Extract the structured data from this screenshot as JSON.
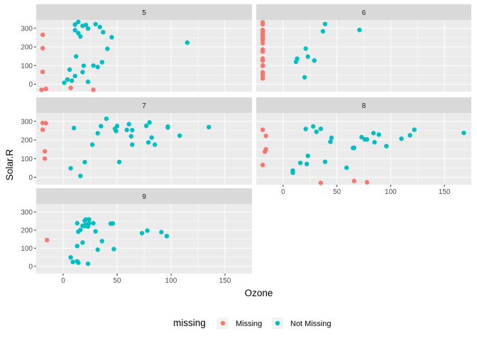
{
  "colors": {
    "missing": "#F8766D",
    "not_missing": "#00BFC4",
    "panel_bg": "#EBEBEB",
    "strip_bg": "#D9D9D9",
    "grid_major": "#FFFFFF"
  },
  "chart_data": {
    "type": "scatter",
    "facet_by": "Month",
    "xlabel": "Ozone",
    "ylabel": "Solar.R",
    "xlim": [
      -25,
      175
    ],
    "ylim": [
      -40,
      345
    ],
    "x_ticks": [
      0,
      50,
      100,
      150
    ],
    "y_ticks": [
      0,
      100,
      200,
      300
    ],
    "legend": {
      "title": "missing",
      "position": "bottom",
      "entries": [
        {
          "key": "missing",
          "label": "Missing"
        },
        {
          "key": "not_missing",
          "label": "Not Missing"
        }
      ]
    },
    "panels": [
      {
        "label": "5",
        "points": [
          {
            "x": -19,
            "y": 265,
            "g": "missing"
          },
          {
            "x": -19,
            "y": 193,
            "g": "missing"
          },
          {
            "x": -19,
            "y": 66,
            "g": "missing"
          },
          {
            "x": -20,
            "y": -30,
            "g": "missing"
          },
          {
            "x": -16,
            "y": -25,
            "g": "missing"
          },
          {
            "x": 7,
            "y": -20,
            "g": "missing"
          },
          {
            "x": 28,
            "y": -30,
            "g": "missing"
          },
          {
            "x": 41,
            "y": 190,
            "g": "not_missing"
          },
          {
            "x": 36,
            "y": 118,
            "g": "not_missing"
          },
          {
            "x": 12,
            "y": 149,
            "g": "not_missing"
          },
          {
            "x": 18,
            "y": 313,
            "g": "not_missing"
          },
          {
            "x": 28,
            "y": 100,
            "g": "not_missing"
          },
          {
            "x": 23,
            "y": 299,
            "g": "not_missing"
          },
          {
            "x": 19,
            "y": 99,
            "g": "not_missing"
          },
          {
            "x": 8,
            "y": 19,
            "g": "not_missing"
          },
          {
            "x": 16,
            "y": 256,
            "g": "not_missing"
          },
          {
            "x": 11,
            "y": 290,
            "g": "not_missing"
          },
          {
            "x": 14,
            "y": 274,
            "g": "not_missing"
          },
          {
            "x": 18,
            "y": 65,
            "g": "not_missing"
          },
          {
            "x": 14,
            "y": 334,
            "g": "not_missing"
          },
          {
            "x": 34,
            "y": 307,
            "g": "not_missing"
          },
          {
            "x": 6,
            "y": 78,
            "g": "not_missing"
          },
          {
            "x": 30,
            "y": 322,
            "g": "not_missing"
          },
          {
            "x": 11,
            "y": 44,
            "g": "not_missing"
          },
          {
            "x": 1,
            "y": 8,
            "g": "not_missing"
          },
          {
            "x": 11,
            "y": 320,
            "g": "not_missing"
          },
          {
            "x": 4,
            "y": 25,
            "g": "not_missing"
          },
          {
            "x": 32,
            "y": 92,
            "g": "not_missing"
          },
          {
            "x": 23,
            "y": 13,
            "g": "not_missing"
          },
          {
            "x": 45,
            "y": 252,
            "g": "not_missing"
          },
          {
            "x": 115,
            "y": 223,
            "g": "not_missing"
          },
          {
            "x": 37,
            "y": 279,
            "g": "not_missing"
          },
          {
            "x": 21,
            "y": 318,
            "g": "not_missing"
          }
        ]
      },
      {
        "label": "6",
        "points": [
          {
            "x": -19,
            "y": 286,
            "g": "missing"
          },
          {
            "x": -19,
            "y": 287,
            "g": "missing"
          },
          {
            "x": -19,
            "y": 242,
            "g": "missing"
          },
          {
            "x": -19,
            "y": 186,
            "g": "missing"
          },
          {
            "x": -19,
            "y": 220,
            "g": "missing"
          },
          {
            "x": -19,
            "y": 264,
            "g": "missing"
          },
          {
            "x": -19,
            "y": 127,
            "g": "missing"
          },
          {
            "x": -19,
            "y": 273,
            "g": "missing"
          },
          {
            "x": -19,
            "y": 291,
            "g": "missing"
          },
          {
            "x": -19,
            "y": 323,
            "g": "missing"
          },
          {
            "x": -19,
            "y": 259,
            "g": "missing"
          },
          {
            "x": -19,
            "y": 250,
            "g": "missing"
          },
          {
            "x": -19,
            "y": 332,
            "g": "missing"
          },
          {
            "x": -19,
            "y": 322,
            "g": "missing"
          },
          {
            "x": -19,
            "y": 98,
            "g": "missing"
          },
          {
            "x": -19,
            "y": 31,
            "g": "missing"
          },
          {
            "x": -19,
            "y": 138,
            "g": "missing"
          },
          {
            "x": -19,
            "y": 269,
            "g": "missing"
          },
          {
            "x": -19,
            "y": 248,
            "g": "missing"
          },
          {
            "x": -19,
            "y": 236,
            "g": "missing"
          },
          {
            "x": -19,
            "y": 101,
            "g": "missing"
          },
          {
            "x": -19,
            "y": 175,
            "g": "missing"
          },
          {
            "x": -19,
            "y": 47,
            "g": "missing"
          },
          {
            "x": -19,
            "y": 59,
            "g": "missing"
          },
          {
            "x": -19,
            "y": 64,
            "g": "missing"
          },
          {
            "x": 29,
            "y": 127,
            "g": "not_missing"
          },
          {
            "x": 71,
            "y": 291,
            "g": "not_missing"
          },
          {
            "x": 39,
            "y": 323,
            "g": "not_missing"
          },
          {
            "x": 23,
            "y": 148,
            "g": "not_missing"
          },
          {
            "x": 21,
            "y": 191,
            "g": "not_missing"
          },
          {
            "x": 37,
            "y": 284,
            "g": "not_missing"
          },
          {
            "x": 20,
            "y": 37,
            "g": "not_missing"
          },
          {
            "x": 12,
            "y": 120,
            "g": "not_missing"
          },
          {
            "x": 13,
            "y": 137,
            "g": "not_missing"
          }
        ]
      },
      {
        "label": "7",
        "points": [
          {
            "x": -19,
            "y": 255,
            "g": "missing"
          },
          {
            "x": -19,
            "y": 291,
            "g": "missing"
          },
          {
            "x": -16,
            "y": 290,
            "g": "missing"
          },
          {
            "x": -17,
            "y": 139,
            "g": "missing"
          },
          {
            "x": -17,
            "y": 100,
            "g": "missing"
          },
          {
            "x": 135,
            "y": 269,
            "g": "not_missing"
          },
          {
            "x": 49,
            "y": 248,
            "g": "not_missing"
          },
          {
            "x": 32,
            "y": 236,
            "g": "not_missing"
          },
          {
            "x": 64,
            "y": 175,
            "g": "not_missing"
          },
          {
            "x": 40,
            "y": 314,
            "g": "not_missing"
          },
          {
            "x": 77,
            "y": 276,
            "g": "not_missing"
          },
          {
            "x": 97,
            "y": 267,
            "g": "not_missing"
          },
          {
            "x": 97,
            "y": 272,
            "g": "not_missing"
          },
          {
            "x": 85,
            "y": 175,
            "g": "not_missing"
          },
          {
            "x": 10,
            "y": 264,
            "g": "not_missing"
          },
          {
            "x": 27,
            "y": 175,
            "g": "not_missing"
          },
          {
            "x": 7,
            "y": 48,
            "g": "not_missing"
          },
          {
            "x": 48,
            "y": 260,
            "g": "not_missing"
          },
          {
            "x": 35,
            "y": 274,
            "g": "not_missing"
          },
          {
            "x": 61,
            "y": 285,
            "g": "not_missing"
          },
          {
            "x": 79,
            "y": 187,
            "g": "not_missing"
          },
          {
            "x": 63,
            "y": 220,
            "g": "not_missing"
          },
          {
            "x": 16,
            "y": 7,
            "g": "not_missing"
          },
          {
            "x": 80,
            "y": 294,
            "g": "not_missing"
          },
          {
            "x": 108,
            "y": 223,
            "g": "not_missing"
          },
          {
            "x": 20,
            "y": 81,
            "g": "not_missing"
          },
          {
            "x": 52,
            "y": 82,
            "g": "not_missing"
          },
          {
            "x": 82,
            "y": 213,
            "g": "not_missing"
          },
          {
            "x": 50,
            "y": 275,
            "g": "not_missing"
          },
          {
            "x": 64,
            "y": 253,
            "g": "not_missing"
          },
          {
            "x": 59,
            "y": 254,
            "g": "not_missing"
          }
        ]
      },
      {
        "label": "8",
        "points": [
          {
            "x": -19,
            "y": 255,
            "g": "missing"
          },
          {
            "x": -19,
            "y": 66,
            "g": "missing"
          },
          {
            "x": -16,
            "y": 222,
            "g": "missing"
          },
          {
            "x": -17,
            "y": 137,
            "g": "missing"
          },
          {
            "x": -16,
            "y": 150,
            "g": "missing"
          },
          {
            "x": 35,
            "y": -30,
            "g": "missing"
          },
          {
            "x": 66,
            "y": -20,
            "g": "missing"
          },
          {
            "x": 78,
            "y": -27,
            "g": "missing"
          },
          {
            "x": 39,
            "y": 83,
            "g": "not_missing"
          },
          {
            "x": 9,
            "y": 24,
            "g": "not_missing"
          },
          {
            "x": 16,
            "y": 77,
            "g": "not_missing"
          },
          {
            "x": 78,
            "y": 203,
            "g": "not_missing"
          },
          {
            "x": 35,
            "y": 260,
            "g": "not_missing"
          },
          {
            "x": 66,
            "y": 158,
            "g": "not_missing"
          },
          {
            "x": 122,
            "y": 255,
            "g": "not_missing"
          },
          {
            "x": 89,
            "y": 229,
            "g": "not_missing"
          },
          {
            "x": 110,
            "y": 207,
            "g": "not_missing"
          },
          {
            "x": 44,
            "y": 192,
            "g": "not_missing"
          },
          {
            "x": 28,
            "y": 273,
            "g": "not_missing"
          },
          {
            "x": 65,
            "y": 157,
            "g": "not_missing"
          },
          {
            "x": 22,
            "y": 71,
            "g": "not_missing"
          },
          {
            "x": 59,
            "y": 51,
            "g": "not_missing"
          },
          {
            "x": 23,
            "y": 115,
            "g": "not_missing"
          },
          {
            "x": 31,
            "y": 244,
            "g": "not_missing"
          },
          {
            "x": 44,
            "y": 190,
            "g": "not_missing"
          },
          {
            "x": 21,
            "y": 259,
            "g": "not_missing"
          },
          {
            "x": 9,
            "y": 36,
            "g": "not_missing"
          },
          {
            "x": 45,
            "y": 212,
            "g": "not_missing"
          },
          {
            "x": 168,
            "y": 238,
            "g": "not_missing"
          },
          {
            "x": 73,
            "y": 215,
            "g": "not_missing"
          },
          {
            "x": 76,
            "y": 203,
            "g": "not_missing"
          },
          {
            "x": 118,
            "y": 225,
            "g": "not_missing"
          },
          {
            "x": 84,
            "y": 237,
            "g": "not_missing"
          },
          {
            "x": 85,
            "y": 188,
            "g": "not_missing"
          },
          {
            "x": 96,
            "y": 167,
            "g": "not_missing"
          },
          {
            "x": 9,
            "y": 28,
            "g": "not_missing"
          }
        ]
      },
      {
        "label": "9",
        "points": [
          {
            "x": -15,
            "y": 145,
            "g": "missing"
          },
          {
            "x": 96,
            "y": 167,
            "g": "not_missing"
          },
          {
            "x": 78,
            "y": 197,
            "g": "not_missing"
          },
          {
            "x": 73,
            "y": 183,
            "g": "not_missing"
          },
          {
            "x": 91,
            "y": 189,
            "g": "not_missing"
          },
          {
            "x": 47,
            "y": 95,
            "g": "not_missing"
          },
          {
            "x": 32,
            "y": 92,
            "g": "not_missing"
          },
          {
            "x": 20,
            "y": 252,
            "g": "not_missing"
          },
          {
            "x": 23,
            "y": 220,
            "g": "not_missing"
          },
          {
            "x": 21,
            "y": 230,
            "g": "not_missing"
          },
          {
            "x": 24,
            "y": 259,
            "g": "not_missing"
          },
          {
            "x": 44,
            "y": 236,
            "g": "not_missing"
          },
          {
            "x": 21,
            "y": 259,
            "g": "not_missing"
          },
          {
            "x": 28,
            "y": 238,
            "g": "not_missing"
          },
          {
            "x": 9,
            "y": 24,
            "g": "not_missing"
          },
          {
            "x": 13,
            "y": 112,
            "g": "not_missing"
          },
          {
            "x": 46,
            "y": 237,
            "g": "not_missing"
          },
          {
            "x": 18,
            "y": 224,
            "g": "not_missing"
          },
          {
            "x": 13,
            "y": 27,
            "g": "not_missing"
          },
          {
            "x": 24,
            "y": 238,
            "g": "not_missing"
          },
          {
            "x": 16,
            "y": 201,
            "g": "not_missing"
          },
          {
            "x": 13,
            "y": 238,
            "g": "not_missing"
          },
          {
            "x": 23,
            "y": 14,
            "g": "not_missing"
          },
          {
            "x": 36,
            "y": 139,
            "g": "not_missing"
          },
          {
            "x": 7,
            "y": 49,
            "g": "not_missing"
          },
          {
            "x": 14,
            "y": 20,
            "g": "not_missing"
          },
          {
            "x": 30,
            "y": 193,
            "g": "not_missing"
          },
          {
            "x": 14,
            "y": 191,
            "g": "not_missing"
          },
          {
            "x": 18,
            "y": 131,
            "g": "not_missing"
          },
          {
            "x": 20,
            "y": 223,
            "g": "not_missing"
          }
        ]
      }
    ]
  }
}
